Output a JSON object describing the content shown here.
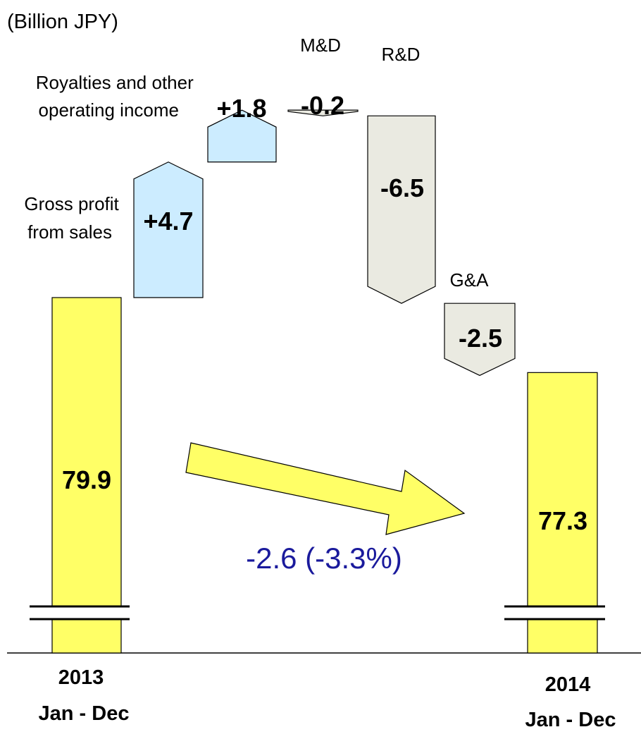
{
  "unit_label": "(Billion JPY)",
  "summary_text": "-2.6 (-3.3%)",
  "colors": {
    "total_bar": "#FFFF66",
    "increase": "#CCECFF",
    "decrease": "#EAEAE1",
    "arrow": "#FFFF66",
    "summary_text": "#1A1A9C"
  },
  "chart_data": {
    "type": "waterfall",
    "title": "",
    "axis_break": true,
    "steps": [
      {
        "key": "start",
        "kind": "total",
        "value": 79.9,
        "value_label": "79.9",
        "category": [
          "2013",
          "Jan - Dec"
        ]
      },
      {
        "key": "gross",
        "kind": "delta",
        "value": 4.7,
        "value_label": "+4.7",
        "label": [
          "Gross profit",
          "from sales"
        ]
      },
      {
        "key": "royalties",
        "kind": "delta",
        "value": 1.8,
        "value_label": "+1.8",
        "label": [
          "Royalties and other",
          "operating income"
        ]
      },
      {
        "key": "md",
        "kind": "delta",
        "value": -0.2,
        "value_label": "-0.2",
        "label": [
          "M&D"
        ]
      },
      {
        "key": "rd",
        "kind": "delta",
        "value": -6.5,
        "value_label": "-6.5",
        "label": [
          "R&D"
        ]
      },
      {
        "key": "ga",
        "kind": "delta",
        "value": -2.5,
        "value_label": "-2.5",
        "label": [
          "G&A"
        ]
      },
      {
        "key": "end",
        "kind": "total",
        "value": 77.3,
        "value_label": "77.3",
        "category": [
          "2014",
          "Jan - Dec"
        ]
      }
    ]
  }
}
